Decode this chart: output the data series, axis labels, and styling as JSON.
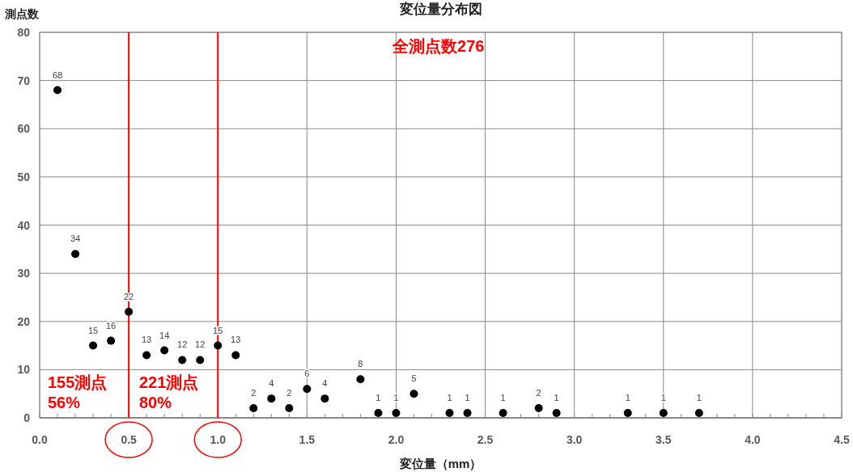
{
  "chart_data": {
    "type": "scatter",
    "title": "変位量分布図",
    "xlabel": "変位量（mm）",
    "ylabel": "測点数",
    "x": [
      0.1,
      0.2,
      0.3,
      0.4,
      0.5,
      0.6,
      0.7,
      0.8,
      0.9,
      1.0,
      1.1,
      1.2,
      1.3,
      1.4,
      1.5,
      1.6,
      1.8,
      1.9,
      2.0,
      2.1,
      2.3,
      2.4,
      2.6,
      2.8,
      2.9,
      3.3,
      3.5,
      3.7
    ],
    "series": [
      {
        "color": "#000000",
        "values": [
          68,
          34,
          15,
          16,
          22,
          13,
          14,
          12,
          12,
          15,
          13,
          2,
          4,
          2,
          6,
          4,
          8,
          1,
          1,
          5,
          1,
          1,
          1,
          2,
          1,
          1,
          1,
          1
        ]
      }
    ],
    "data_labels": true,
    "marker": "circle",
    "grid": true,
    "xlim": [
      0,
      4.5
    ],
    "xticks": [
      {
        "value": 0,
        "label": "0.0"
      },
      {
        "value": 0.5,
        "label": "0.5"
      },
      {
        "value": 1,
        "label": "1.0"
      },
      {
        "value": 1.5,
        "label": "1.5"
      },
      {
        "value": 2,
        "label": "2.0"
      },
      {
        "value": 2.5,
        "label": "2.5"
      },
      {
        "value": 3,
        "label": "3.0"
      },
      {
        "value": 3.5,
        "label": "3.5"
      },
      {
        "value": 4,
        "label": "4.0"
      },
      {
        "value": 4.5,
        "label": "4.5"
      }
    ],
    "ylim": [
      0,
      80
    ],
    "yticks": [
      0,
      10,
      20,
      30,
      40,
      50,
      60,
      70,
      80
    ],
    "ref_lines": [
      {
        "axis": "x",
        "value": 0.5,
        "color": "#ff0000"
      },
      {
        "axis": "x",
        "value": 1.0,
        "color": "#ff0000"
      }
    ],
    "annotations": [
      "全測点数276",
      "155測点\n56%",
      "221測点\n80%"
    ]
  }
}
